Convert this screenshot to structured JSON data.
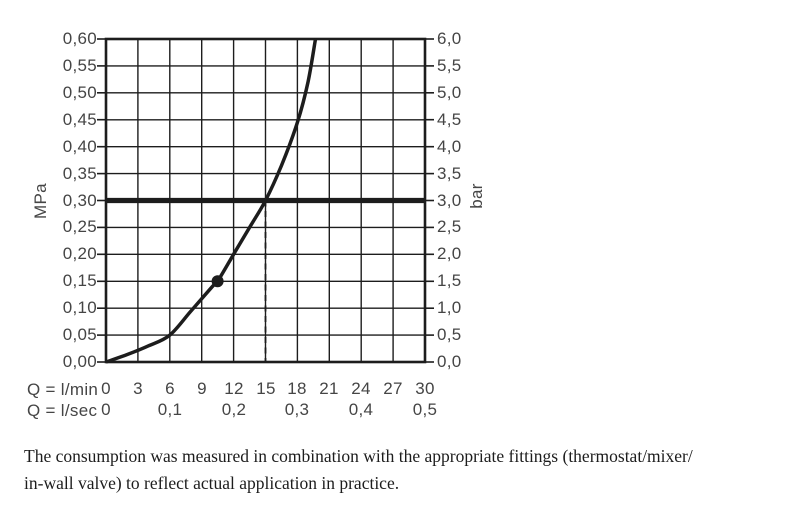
{
  "colors": {
    "ink": "#1d1d1d",
    "label": "#454545",
    "background": "#ffffff"
  },
  "chart_data": {
    "type": "line",
    "title": "",
    "x_axis": {
      "prefix_l_min": "Q = l/min",
      "prefix_l_sec": "Q = l/sec",
      "min": 0,
      "max": 30,
      "grid_step": 3,
      "tick_labels_l_min": [
        "0",
        "3",
        "6",
        "9",
        "12",
        "15",
        "18",
        "21",
        "24",
        "27",
        "30"
      ],
      "tick_values_l_min": [
        0,
        3,
        6,
        9,
        12,
        15,
        18,
        21,
        24,
        27,
        30
      ],
      "tick_labels_l_sec": [
        "0",
        "0,1",
        "0,2",
        "0,3",
        "0,4",
        "0,5"
      ],
      "tick_positions_l_sec_in_l_min": [
        0,
        6,
        12,
        18,
        24,
        30
      ]
    },
    "y_axis_left": {
      "unit": "MPa",
      "min": 0,
      "max": 0.6,
      "grid_step": 0.05,
      "tick_labels": [
        "0,60",
        "0,55",
        "0,50",
        "0,45",
        "0,40",
        "0,35",
        "0,30",
        "0,25",
        "0,20",
        "0,15",
        "0,10",
        "0,05",
        "0,00"
      ],
      "tick_values": [
        0.6,
        0.55,
        0.5,
        0.45,
        0.4,
        0.35,
        0.3,
        0.25,
        0.2,
        0.15,
        0.1,
        0.05,
        0.0
      ]
    },
    "y_axis_right": {
      "unit": "bar",
      "min": 0,
      "max": 6,
      "tick_labels": [
        "6,0",
        "5,5",
        "5,0",
        "4,5",
        "4,0",
        "3,5",
        "3,0",
        "2,5",
        "2,0",
        "1,5",
        "1,0",
        "0,5",
        "0,0"
      ]
    },
    "grid": true,
    "series": [
      {
        "name": "flow-pressure-curve",
        "points": [
          [
            0,
            0.0
          ],
          [
            2,
            0.014
          ],
          [
            4,
            0.03
          ],
          [
            6,
            0.05
          ],
          [
            8,
            0.095
          ],
          [
            10,
            0.14
          ],
          [
            10.5,
            0.15
          ],
          [
            12,
            0.2
          ],
          [
            13.5,
            0.25
          ],
          [
            15,
            0.3
          ],
          [
            16.5,
            0.365
          ],
          [
            18,
            0.445
          ],
          [
            19,
            0.52
          ],
          [
            19.7,
            0.6
          ]
        ]
      }
    ],
    "reference_line": {
      "p_mpa": 0.3,
      "p_bar": 3.0
    },
    "dashed_guide": {
      "q_l_min": 15,
      "from_p_mpa": 0,
      "to_p_mpa": 0.3
    },
    "marker_point": {
      "q_l_min": 10.5,
      "p_mpa": 0.15
    }
  },
  "caption": {
    "lines": [
      "The consumption was measured in combination with the appropriate fittings (thermostat/mixer/",
      "in-wall valve) to reflect actual application in practice."
    ]
  }
}
